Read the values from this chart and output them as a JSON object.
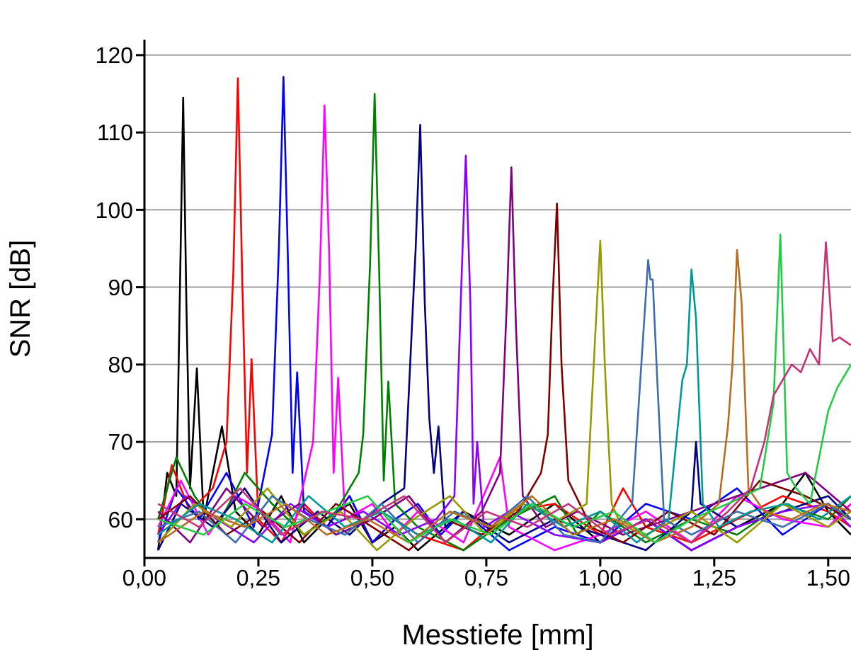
{
  "chart_data": {
    "type": "line",
    "xlabel": "Messtiefe [mm]",
    "ylabel": "SNR [dB]",
    "xlim": [
      0,
      1.55
    ],
    "ylim": [
      55,
      122
    ],
    "xticks": [
      {
        "value": 0,
        "label": "0,00"
      },
      {
        "value": 0.25,
        "label": "0,25"
      },
      {
        "value": 0.5,
        "label": "0,50"
      },
      {
        "value": 0.75,
        "label": "0,75"
      },
      {
        "value": 1,
        "label": "1,00"
      },
      {
        "value": 1.25,
        "label": "1,25"
      },
      {
        "value": 1.5,
        "label": "1,50"
      }
    ],
    "yticks": [
      60,
      70,
      80,
      90,
      100,
      110,
      120
    ],
    "grid": "y",
    "marker": "none",
    "series": [
      {
        "color": "#000000",
        "x": [
          0.03,
          0.05,
          0.07,
          0.078,
          0.085,
          0.092,
          0.1,
          0.115,
          0.13,
          0.17,
          0.2,
          0.25,
          0.3,
          0.35,
          0.4,
          0.45,
          0.5,
          0.55,
          0.6,
          0.7,
          0.8,
          0.9,
          1.0,
          1.1,
          1.2,
          1.3,
          1.4,
          1.45,
          1.5,
          1.55
        ],
        "values": [
          56,
          66,
          63,
          90,
          114.5,
          88,
          64,
          79.5,
          60,
          72,
          61,
          58,
          63,
          57,
          60,
          62,
          57,
          59,
          56,
          61,
          58,
          62,
          57,
          60,
          56,
          59,
          62,
          66,
          61,
          58
        ]
      },
      {
        "color": "#ff0000",
        "x": [
          0.03,
          0.06,
          0.1,
          0.15,
          0.18,
          0.195,
          0.205,
          0.215,
          0.225,
          0.235,
          0.25,
          0.3,
          0.35,
          0.4,
          0.45,
          0.5,
          0.55,
          0.6,
          0.7,
          0.8,
          0.9,
          1.0,
          1.05,
          1.1,
          1.2,
          1.3,
          1.4,
          1.5,
          1.55
        ],
        "values": [
          58,
          67,
          61,
          64,
          70,
          92,
          117,
          90,
          66,
          80.7,
          60,
          57,
          62,
          59,
          63,
          57,
          60,
          58,
          56,
          61,
          62,
          58,
          64,
          59,
          57,
          60,
          63,
          61,
          59
        ]
      },
      {
        "color": "#0000ff",
        "x": [
          0.03,
          0.07,
          0.12,
          0.18,
          0.24,
          0.28,
          0.295,
          0.305,
          0.315,
          0.325,
          0.335,
          0.35,
          0.4,
          0.45,
          0.5,
          0.55,
          0.6,
          0.65,
          0.7,
          0.8,
          0.9,
          1.0,
          1.1,
          1.2,
          1.3,
          1.4,
          1.5,
          1.55
        ],
        "values": [
          57,
          64,
          60,
          66,
          59,
          71,
          95,
          117.2,
          93,
          66,
          79,
          61,
          59,
          63,
          57,
          60,
          62,
          58,
          61,
          56,
          59,
          57,
          62,
          60,
          64,
          58,
          62,
          60
        ]
      },
      {
        "color": "#ff00ff",
        "x": [
          0.03,
          0.08,
          0.14,
          0.2,
          0.26,
          0.32,
          0.37,
          0.385,
          0.395,
          0.405,
          0.415,
          0.425,
          0.44,
          0.5,
          0.55,
          0.6,
          0.7,
          0.78,
          0.8,
          0.9,
          1.0,
          1.1,
          1.2,
          1.3,
          1.4,
          1.5,
          1.55
        ],
        "values": [
          59,
          65,
          58,
          63,
          61,
          57,
          70,
          92,
          113.5,
          95,
          66,
          78.3,
          60,
          62,
          58,
          61,
          57,
          68,
          59,
          56,
          58,
          61,
          57,
          63,
          60,
          59,
          62
        ]
      },
      {
        "color": "#008000",
        "x": [
          0.03,
          0.07,
          0.11,
          0.16,
          0.22,
          0.28,
          0.35,
          0.42,
          0.47,
          0.48,
          0.495,
          0.505,
          0.515,
          0.525,
          0.535,
          0.55,
          0.6,
          0.7,
          0.8,
          0.9,
          0.95,
          1.0,
          1.1,
          1.2,
          1.3,
          1.4,
          1.5,
          1.55
        ],
        "values": [
          60,
          68,
          63,
          59,
          66,
          62,
          58,
          61,
          66,
          71,
          93,
          115,
          92,
          65,
          77.8,
          62,
          59,
          56,
          60,
          63,
          58,
          61,
          57,
          60,
          58,
          62,
          60,
          63
        ]
      },
      {
        "color": "#000080",
        "x": [
          0.03,
          0.08,
          0.15,
          0.22,
          0.3,
          0.38,
          0.45,
          0.52,
          0.57,
          0.595,
          0.605,
          0.615,
          0.625,
          0.635,
          0.645,
          0.66,
          0.7,
          0.8,
          0.9,
          1.0,
          1.1,
          1.2,
          1.21,
          1.22,
          1.3,
          1.4,
          1.5,
          1.55
        ],
        "values": [
          56,
          62,
          59,
          64,
          57,
          61,
          58,
          62,
          64,
          95,
          111,
          88,
          73,
          66,
          72,
          59,
          61,
          57,
          60,
          58,
          56,
          61,
          70,
          62,
          59,
          61,
          63,
          60
        ]
      },
      {
        "color": "#8b00ff",
        "x": [
          0.03,
          0.09,
          0.16,
          0.24,
          0.32,
          0.4,
          0.48,
          0.56,
          0.64,
          0.68,
          0.695,
          0.705,
          0.715,
          0.722,
          0.73,
          0.745,
          0.8,
          0.9,
          1.0,
          1.1,
          1.2,
          1.3,
          1.4,
          1.5,
          1.55
        ],
        "values": [
          58,
          63,
          60,
          57,
          62,
          59,
          61,
          58,
          60,
          63,
          90,
          107,
          88,
          62,
          70,
          59,
          61,
          58,
          57,
          60,
          56,
          59,
          61,
          62,
          59
        ]
      },
      {
        "color": "#800080",
        "x": [
          0.03,
          0.1,
          0.18,
          0.26,
          0.34,
          0.42,
          0.5,
          0.58,
          0.66,
          0.74,
          0.78,
          0.795,
          0.805,
          0.815,
          0.83,
          0.88,
          0.95,
          1.05,
          1.15,
          1.25,
          1.35,
          1.45,
          1.55
        ],
        "values": [
          61,
          57,
          64,
          59,
          62,
          58,
          60,
          63,
          57,
          61,
          66,
          88,
          105.5,
          85,
          63,
          59,
          61,
          58,
          60,
          62,
          64,
          66,
          61
        ]
      },
      {
        "color": "#800000",
        "x": [
          0.03,
          0.1,
          0.18,
          0.26,
          0.34,
          0.42,
          0.5,
          0.58,
          0.66,
          0.74,
          0.82,
          0.87,
          0.885,
          0.895,
          0.905,
          0.915,
          0.93,
          0.98,
          1.05,
          1.15,
          1.25,
          1.35,
          1.45,
          1.55
        ],
        "values": [
          60,
          63,
          58,
          61,
          57,
          62,
          59,
          56,
          60,
          58,
          61,
          66,
          71,
          88,
          100.8,
          80,
          65,
          59,
          57,
          61,
          58,
          65,
          63,
          60
        ]
      },
      {
        "color": "#999900",
        "x": [
          0.03,
          0.11,
          0.19,
          0.27,
          0.35,
          0.43,
          0.51,
          0.59,
          0.67,
          0.75,
          0.83,
          0.91,
          0.97,
          0.99,
          1.0,
          1.01,
          1.015,
          1.025,
          1.04,
          1.1,
          1.2,
          1.3,
          1.4,
          1.5,
          1.55
        ],
        "values": [
          57,
          62,
          59,
          64,
          58,
          61,
          56,
          60,
          63,
          58,
          62,
          60,
          62,
          85,
          96,
          80,
          73.7,
          62,
          60,
          58,
          61,
          57,
          62,
          59,
          61
        ]
      },
      {
        "color": "#3d6eb0",
        "x": [
          0.03,
          0.12,
          0.2,
          0.28,
          0.36,
          0.44,
          0.52,
          0.6,
          0.68,
          0.76,
          0.84,
          0.92,
          1.0,
          1.07,
          1.09,
          1.105,
          1.11,
          1.115,
          1.125,
          1.14,
          1.2,
          1.3,
          1.4,
          1.5,
          1.55
        ],
        "values": [
          59,
          61,
          57,
          63,
          60,
          58,
          62,
          57,
          61,
          59,
          63,
          58,
          57,
          62,
          80,
          93.5,
          91,
          91,
          78,
          60,
          58,
          61,
          59,
          62,
          60
        ]
      },
      {
        "color": "#009999",
        "x": [
          0.03,
          0.12,
          0.2,
          0.28,
          0.36,
          0.44,
          0.52,
          0.6,
          0.68,
          0.76,
          0.84,
          0.92,
          1.0,
          1.08,
          1.15,
          1.18,
          1.19,
          1.2,
          1.21,
          1.225,
          1.26,
          1.33,
          1.41,
          1.48,
          1.55
        ],
        "values": [
          58,
          62,
          60,
          57,
          63,
          59,
          61,
          58,
          60,
          57,
          62,
          59,
          61,
          57,
          60,
          78,
          80,
          92.3,
          86,
          62,
          59,
          61,
          62,
          60,
          63
        ]
      },
      {
        "color": "#b86e1e",
        "x": [
          0.03,
          0.13,
          0.22,
          0.31,
          0.4,
          0.49,
          0.58,
          0.67,
          0.76,
          0.85,
          0.94,
          1.03,
          1.12,
          1.2,
          1.26,
          1.28,
          1.29,
          1.3,
          1.31,
          1.325,
          1.36,
          1.42,
          1.49,
          1.55
        ],
        "values": [
          57,
          61,
          59,
          62,
          58,
          60,
          57,
          61,
          59,
          63,
          58,
          60,
          57,
          59,
          62,
          72,
          80,
          94.8,
          88,
          64,
          61,
          60,
          62,
          61
        ]
      },
      {
        "color": "#22cc44",
        "x": [
          0.03,
          0.13,
          0.22,
          0.31,
          0.4,
          0.49,
          0.58,
          0.67,
          0.76,
          0.85,
          0.94,
          1.03,
          1.12,
          1.2,
          1.28,
          1.35,
          1.38,
          1.395,
          1.41,
          1.43,
          1.46,
          1.48,
          1.5,
          1.52,
          1.55
        ],
        "values": [
          60,
          58,
          62,
          59,
          61,
          63,
          57,
          60,
          58,
          62,
          59,
          61,
          57,
          60,
          62,
          64,
          75,
          96.8,
          66,
          64,
          62,
          68,
          74,
          77,
          80
        ]
      },
      {
        "color": "#c83278",
        "x": [
          0.03,
          0.12,
          0.21,
          0.3,
          0.39,
          0.48,
          0.57,
          0.66,
          0.75,
          0.84,
          0.93,
          1.02,
          1.11,
          1.2,
          1.28,
          1.33,
          1.36,
          1.38,
          1.4,
          1.42,
          1.44,
          1.46,
          1.48,
          1.495,
          1.51,
          1.525,
          1.55
        ],
        "values": [
          62,
          59,
          64,
          58,
          61,
          60,
          63,
          57,
          61,
          59,
          62,
          58,
          60,
          57,
          61,
          64,
          70,
          76,
          78,
          80,
          79,
          82,
          80,
          95.8,
          83,
          83.5,
          82.5
        ]
      }
    ]
  }
}
